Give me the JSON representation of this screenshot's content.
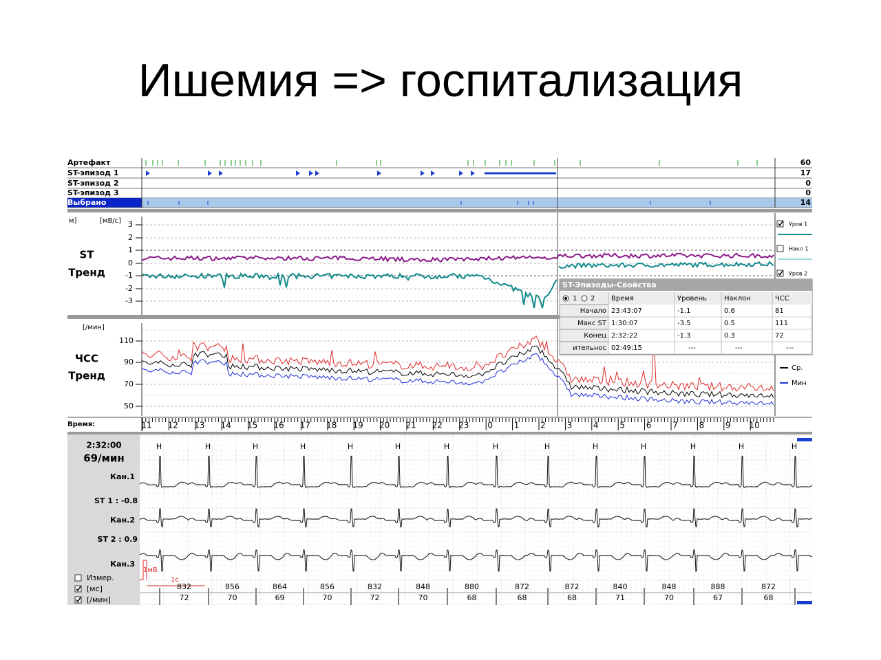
{
  "title": "Ишемия => госпитализация",
  "events_panel": {
    "rows": [
      {
        "label": "Артефакт",
        "count": "60"
      },
      {
        "label": "ST-эпизод 1",
        "count": "17"
      },
      {
        "label": "ST-эпизод 2",
        "count": "0"
      },
      {
        "label": "ST-эпизод 3",
        "count": "0"
      },
      {
        "label": "Выбрано",
        "count": "14"
      }
    ]
  },
  "st_trend": {
    "units_left": "м]",
    "units": "[мВ/с]",
    "label_line1": "ST",
    "label_line2": "Тренд",
    "yticks": [
      "3",
      "2",
      "1",
      "0",
      "-1",
      "-2",
      "-3"
    ],
    "channels": [
      {
        "name": "Уров 1",
        "checked": true
      },
      {
        "name": "Накл 1",
        "checked": false
      },
      {
        "name": "Уров 2",
        "checked": true
      }
    ]
  },
  "hr_trend": {
    "units": "[/мин]",
    "label_line1": "ЧСС",
    "label_line2": "Тренд",
    "yticks": [
      "110",
      "90",
      "70",
      "50"
    ],
    "legend": [
      {
        "name": "Ср.",
        "color": "#000000"
      },
      {
        "name": "Мин",
        "color": "#1f2fd6"
      }
    ]
  },
  "time_axis": {
    "label": "Время:",
    "ticks": [
      "11",
      "12",
      "13",
      "14",
      "15",
      "16",
      "17",
      "18",
      "19",
      "20",
      "21",
      "22",
      "23",
      "0",
      "1",
      "2",
      "3",
      "4",
      "5",
      "6",
      "7",
      "8",
      "9",
      "10"
    ]
  },
  "episode_properties": {
    "title": "ST-Эпизоды-Свойства",
    "channel_options": [
      "1",
      "2"
    ],
    "columns": [
      "Время",
      "Уровень",
      "Наклон",
      "ЧСС"
    ],
    "rows": [
      [
        "Начало",
        "23:43:07",
        "-1.1",
        "0.6",
        "81"
      ],
      [
        "Макс ST",
        "1:30:07",
        "-3.5",
        "0.5",
        "111"
      ],
      [
        "Конец",
        "2:32:22",
        "-1.3",
        "0.3",
        "72"
      ],
      [
        "ительнос",
        "02:49:15",
        "---",
        "---",
        "---"
      ]
    ]
  },
  "ecg": {
    "time": "2:32:00",
    "rate": "69/мин",
    "channels": [
      "Кан.1",
      "Кан.2",
      "Кан.3"
    ],
    "st_values": [
      "ST 1 : -0.8",
      "ST 2 : 0.9"
    ],
    "options": [
      {
        "name": "Измер.",
        "checked": false
      },
      {
        "name": "[мс]",
        "checked": true
      },
      {
        "name": "[/мин]",
        "checked": true
      }
    ],
    "calibration_amplitude": "1мВ",
    "calibration_time": "1с",
    "beat_marker": "H",
    "rr_intervals": [
      "832",
      "856",
      "864",
      "856",
      "832",
      "848",
      "880",
      "872",
      "872",
      "840",
      "848",
      "888",
      "872"
    ],
    "heart_rates": [
      "72",
      "70",
      "69",
      "70",
      "72",
      "70",
      "68",
      "68",
      "68",
      "71",
      "70",
      "67",
      "68"
    ]
  }
}
